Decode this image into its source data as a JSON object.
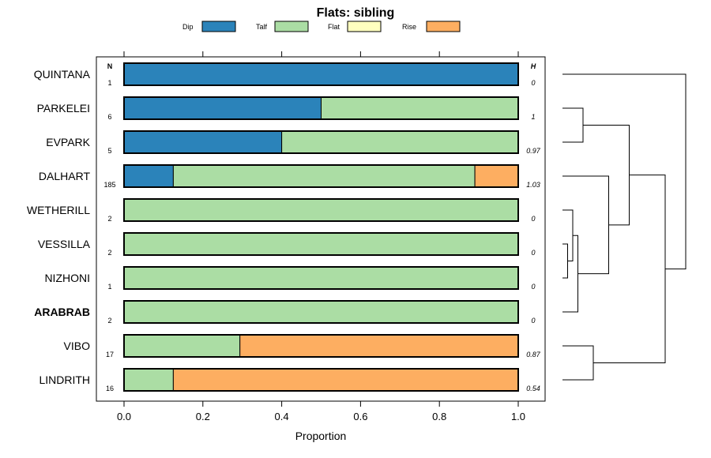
{
  "chart_data": {
    "type": "bar",
    "orientation": "horizontal",
    "stacked": true,
    "title": "Flats: sibling",
    "xlabel": "Proportion",
    "ylabel": "",
    "xlim": [
      0,
      1
    ],
    "xticks": [
      "0.0",
      "0.2",
      "0.4",
      "0.6",
      "0.8",
      "1.0"
    ],
    "xtick_values": [
      0,
      0.2,
      0.4,
      0.6,
      0.8,
      1.0
    ],
    "legend": {
      "position": "top",
      "entries": [
        {
          "name": "Dip",
          "color": "#2B83BA"
        },
        {
          "name": "Talf",
          "color": "#ABDDA4"
        },
        {
          "name": "Flat",
          "color": "#FFFFBF"
        },
        {
          "name": "Rise",
          "color": "#FDAE61"
        }
      ]
    },
    "n_header": "N",
    "h_header": "H",
    "categories": [
      "QUINTANA",
      "PARKELEI",
      "EVPARK",
      "DALHART",
      "WETHERILL",
      "VESSILLA",
      "NIZHONI",
      "ARABRAB",
      "VIBO",
      "LINDRITH"
    ],
    "highlighted_category": "ARABRAB",
    "n_values": [
      "1",
      "6",
      "5",
      "185",
      "2",
      "2",
      "1",
      "2",
      "17",
      "16"
    ],
    "h_values": [
      "0",
      "1",
      "0.97",
      "1.03",
      "0",
      "0",
      "0",
      "0",
      "0.87",
      "0.54"
    ],
    "series": [
      {
        "name": "Dip",
        "values": [
          1.0,
          0.5,
          0.4,
          0.125,
          0,
          0,
          0,
          0,
          0,
          0
        ]
      },
      {
        "name": "Talf",
        "values": [
          0,
          0.5,
          0.6,
          0.765,
          1.0,
          1.0,
          1.0,
          1.0,
          0.294,
          0.125
        ]
      },
      {
        "name": "Flat",
        "values": [
          0,
          0,
          0,
          0,
          0,
          0,
          0,
          0,
          0,
          0
        ]
      },
      {
        "name": "Rise",
        "values": [
          0,
          0,
          0,
          0.11,
          0,
          0,
          0,
          0,
          0.706,
          0.875
        ]
      }
    ],
    "dendrogram": {
      "leaf_order": [
        "QUINTANA",
        "PARKELEI",
        "EVPARK",
        "DALHART",
        "WETHERILL",
        "VESSILLA",
        "NIZHONI",
        "ARABRAB",
        "VIBO",
        "LINDRITH"
      ],
      "merges": [
        {
          "a": "VESSILLA",
          "b": "NIZHONI",
          "height": 0.05
        },
        {
          "a": "m0",
          "b": "WETHERILL",
          "height": 0.1
        },
        {
          "a": "m1",
          "b": "ARABRAB",
          "height": 0.15
        },
        {
          "a": "PARKELEI",
          "b": "EVPARK",
          "height": 0.2
        },
        {
          "a": "VIBO",
          "b": "LINDRITH",
          "height": 0.3
        },
        {
          "a": "DALHART",
          "b": "m2",
          "height": 0.45
        },
        {
          "a": "m3",
          "b": "m5",
          "height": 0.65
        },
        {
          "a": "m6",
          "b": "m4",
          "height": 1.0
        },
        {
          "a": "QUINTANA",
          "b": "m7",
          "height": 1.2
        }
      ]
    }
  }
}
